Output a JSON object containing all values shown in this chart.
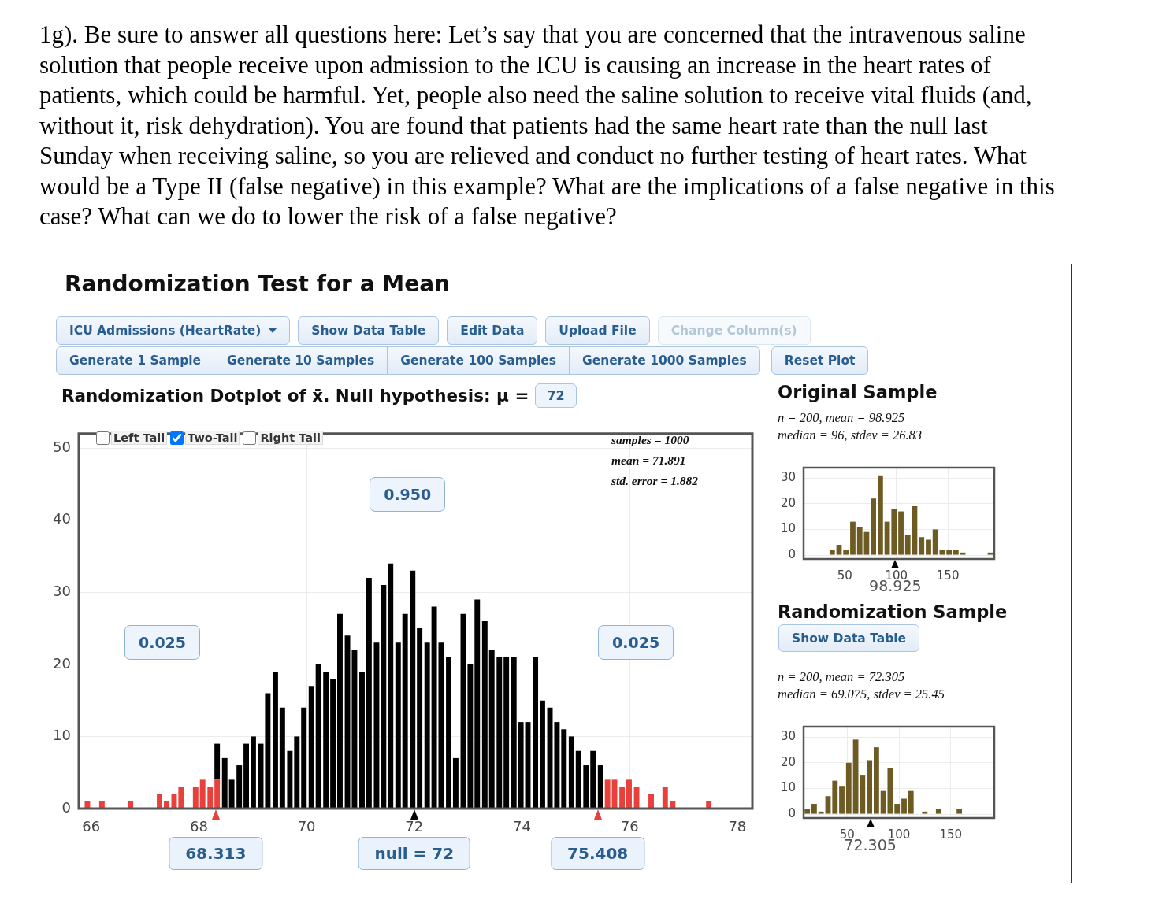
{
  "chart_data": [
    {
      "type": "other",
      "title": "1g). Be sure to answer all questions here: Let’s say that you are concerned that the intravenous saline solution that people receive upon admission to the ICU is causing an increase in the heart rates of patients, which could be harmful. Yet, people also need the saline solution to receive vital fluids (and, without it, risk dehydration). You are found that patients had the same heart rate than the null last Sunday when receiving saline, so you are relieved and conduct no further testing of heart rates. What would be a Type II (false negative) in this example? What are the implications of a false negative in this case? What can we do to lower the risk of a false negative?",
      "subtitle": "Randomization Test for a Mean",
      "annotations": [
        "ICU Admissions (HeartRate)",
        "Show Data Table",
        "Edit Data",
        "Upload File",
        "Change Column(s)",
        "Generate 1 Sample",
        "Generate 10 Samples",
        "Generate 100 Samples",
        "Generate 1000 Samples",
        "Reset Plot"
      ]
    },
    {
      "type": "bar",
      "title": "Randomization Dotplot of x̄. Null hypothesis: μ =",
      "x": [
        65.93,
        66.06,
        66.2,
        66.33,
        66.46,
        66.6,
        66.73,
        66.87,
        67.0,
        67.14,
        67.27,
        67.4,
        67.54,
        67.67,
        67.81,
        67.94,
        68.07,
        68.21,
        68.34,
        68.48,
        68.61,
        68.75,
        68.88,
        69.01,
        69.15,
        69.28,
        69.42,
        69.55,
        69.69,
        69.82,
        69.95,
        70.09,
        70.22,
        70.36,
        70.49,
        70.62,
        70.76,
        70.89,
        71.03,
        71.16,
        71.3,
        71.43,
        71.56,
        71.7,
        71.83,
        71.97,
        72.1,
        72.24,
        72.37,
        72.5,
        72.64,
        72.77,
        72.91,
        73.04,
        73.17,
        73.31,
        73.44,
        73.58,
        73.71,
        73.85,
        73.98,
        74.11,
        74.25,
        74.38,
        74.52,
        74.65,
        74.78,
        74.92,
        75.05,
        75.19,
        75.32,
        75.46,
        75.59,
        75.72,
        75.86,
        75.99,
        76.13,
        76.26,
        76.4,
        76.53,
        76.66,
        76.8,
        76.93,
        77.07,
        77.2,
        77.33,
        77.47
      ],
      "series": [
        {
          "color": "#e8413c",
          "values": [
            1,
            0,
            1,
            0,
            0,
            0,
            1,
            0,
            0,
            0,
            2,
            1,
            2,
            3,
            0,
            3,
            4,
            3,
            4,
            0,
            0,
            0,
            0,
            0,
            0,
            0,
            0,
            0,
            0,
            0,
            0,
            0,
            0,
            0,
            0,
            0,
            0,
            0,
            0,
            0,
            0,
            0,
            0,
            0,
            0,
            0,
            0,
            0,
            0,
            0,
            0,
            0,
            0,
            0,
            0,
            0,
            0,
            0,
            0,
            0,
            0,
            0,
            0,
            0,
            0,
            0,
            0,
            0,
            0,
            0,
            0,
            0,
            4,
            4,
            3,
            4,
            3,
            0,
            2,
            0,
            3,
            1,
            0,
            0,
            0,
            0,
            1
          ]
        },
        {
          "color": "#000000",
          "values": [
            0,
            0,
            0,
            0,
            0,
            0,
            0,
            0,
            0,
            0,
            0,
            0,
            0,
            0,
            0,
            0,
            0,
            0,
            5,
            7,
            4,
            6,
            9,
            10,
            9,
            16,
            19,
            14,
            8,
            10,
            14,
            17,
            20,
            19,
            18,
            27,
            24,
            22,
            19,
            32,
            23,
            31,
            34,
            23,
            27,
            33,
            25,
            23,
            28,
            23,
            21,
            7,
            27,
            20,
            29,
            26,
            22,
            21,
            21,
            21,
            12,
            12,
            21,
            15,
            14,
            12,
            11,
            10,
            8,
            6,
            8,
            6,
            0,
            0,
            0,
            0,
            0,
            0,
            0,
            0,
            0,
            0,
            0,
            0,
            0,
            0,
            0
          ]
        }
      ],
      "stacked": true,
      "xlim": [
        65.77,
        78.28
      ],
      "xticks": [
        66,
        68,
        70,
        72,
        74,
        76,
        78
      ],
      "ylim": [
        0,
        52
      ],
      "yticks": [
        0,
        10,
        20,
        30,
        40,
        50
      ],
      "grid": true,
      "annotations": [
        "Left Tail",
        "Two-Tail",
        "Right Tail",
        "samples = 1000",
        "mean = 71.891",
        "std. error = 1.882",
        "0.025",
        "0.950",
        "0.025",
        "72",
        {
          "text": "68.313",
          "x": 68.313,
          "y": 0
        },
        {
          "text": "null = 72",
          "x": 72,
          "y": 0
        },
        {
          "text": "75.408",
          "x": 75.408,
          "y": 0
        }
      ]
    },
    {
      "type": "histogram",
      "title": "Original Sample",
      "subtitle": "n = 200, mean = 98.925\nmedian = 96, stdev = 26.83",
      "bins": [
        34.4,
        41.1,
        47.7,
        54.4,
        61.1,
        67.8,
        74.4,
        81.1,
        87.8,
        94.4,
        101.1,
        107.8,
        114.4,
        121.1,
        127.8,
        134.5,
        141.1,
        147.8,
        154.5,
        161.1,
        167.8,
        174.5,
        181.1,
        187.8,
        194.5
      ],
      "values": [
        2,
        4,
        2,
        13,
        11,
        9,
        22,
        31,
        13,
        18,
        17,
        8,
        19,
        7,
        6,
        10,
        2,
        2,
        2,
        1,
        0,
        0,
        0,
        1
      ],
      "color": "#6e5b24",
      "xlim": [
        10,
        195
      ],
      "xticks": [
        50,
        100,
        150
      ],
      "ylim": [
        -1.5,
        34
      ],
      "yticks": [
        0,
        10,
        20,
        30
      ],
      "grid": true,
      "annotations": [
        {
          "text": "98.925",
          "x": 98.925,
          "y": 0
        }
      ]
    },
    {
      "type": "histogram",
      "title": "Randomization Sample",
      "subtitle": "n = 200, mean = 72.305\nmedian = 69.075, stdev = 25.45",
      "bins": [
        8.2,
        14.9,
        21.5,
        28.2,
        34.9,
        41.6,
        48.2,
        54.9,
        61.6,
        68.2,
        74.9,
        81.6,
        88.2,
        94.9,
        101.6,
        108.3,
        114.9,
        121.6,
        128.3,
        134.9,
        141.6,
        148.3,
        154.9,
        161.6
      ],
      "values": [
        2,
        4,
        1,
        7,
        13,
        11,
        20,
        29,
        15,
        21,
        26,
        9,
        18,
        4,
        6,
        9,
        0,
        1,
        0,
        2,
        0,
        0,
        2
      ],
      "color": "#6e5b24",
      "xlim": [
        8,
        192
      ],
      "xticks": [
        50,
        100,
        150
      ],
      "ylim": [
        -1.5,
        34
      ],
      "yticks": [
        0,
        10,
        20,
        30
      ],
      "grid": true,
      "annotations": [
        "Show Data Table",
        {
          "text": "72.305",
          "x": 72.305,
          "y": 0
        }
      ]
    }
  ]
}
